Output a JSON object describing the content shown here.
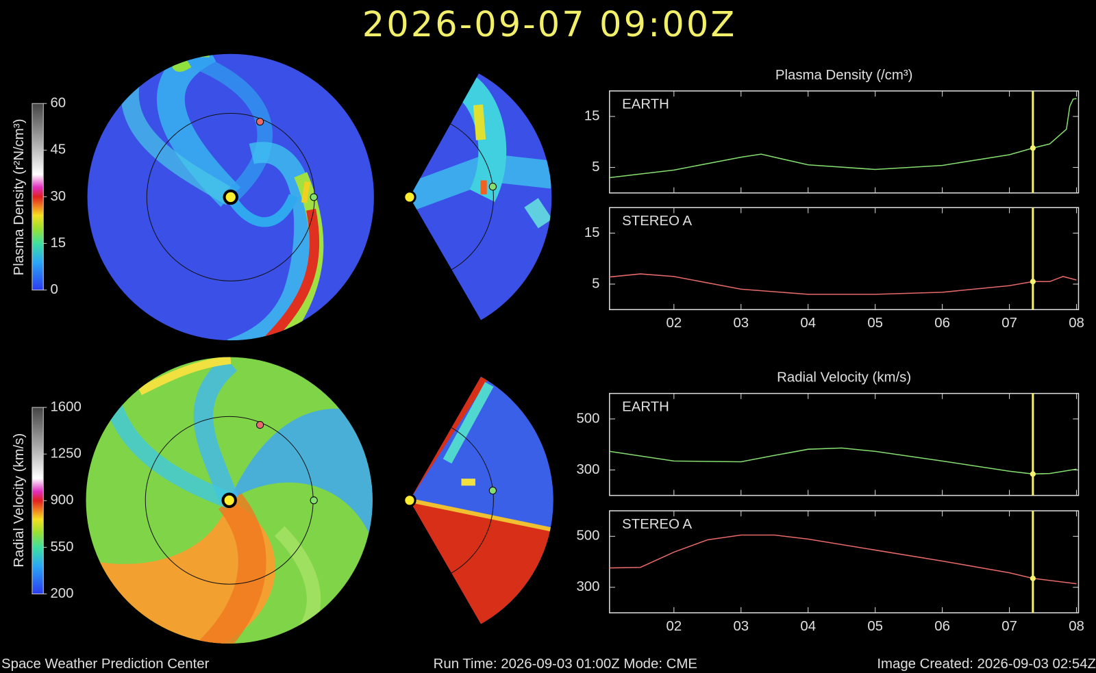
{
  "title": "2026-09-07  09:00Z",
  "footer": {
    "left": "Space Weather Prediction Center",
    "center": "Run Time: 2026-09-03 01:00Z  Mode: CME",
    "right": "Image Created: 2026-09-03 02:54Z"
  },
  "colorbars": [
    {
      "label": "Plasma Density (r²N/cm³)",
      "lim": [
        0,
        60
      ],
      "ticks": [
        0,
        15,
        30,
        45,
        60
      ]
    },
    {
      "label": "Radial Velocity (km/s)",
      "lim": [
        200,
        1600
      ],
      "ticks": [
        200,
        550,
        900,
        1250,
        1600
      ]
    }
  ],
  "current_x": 7.35,
  "chart_data": [
    {
      "type": "line",
      "title": "Plasma Density (/cm³)",
      "x": [
        1.04,
        2,
        3,
        3.3,
        4,
        5,
        6,
        7,
        7.35,
        7.6,
        7.85,
        7.9,
        7.95,
        8.0
      ],
      "series": [
        {
          "name": "EARTH",
          "color": "#86e070",
          "values": [
            3,
            4.5,
            7,
            7.6,
            5.5,
            4.6,
            5.4,
            7.5,
            8.8,
            9.6,
            12.5,
            17,
            18.4,
            18.5
          ]
        }
      ],
      "xlim": [
        1.04,
        8.03
      ],
      "ylim": [
        0,
        20
      ],
      "yticks": [
        5,
        15
      ]
    },
    {
      "type": "line",
      "x": [
        1.04,
        1.5,
        2,
        3,
        4,
        5,
        6,
        7,
        7.35,
        7.6,
        7.8,
        8.0
      ],
      "series": [
        {
          "name": "STEREO A",
          "color": "#e86a6a",
          "values": [
            6.4,
            7,
            6.5,
            4,
            3,
            3,
            3.4,
            4.7,
            5.5,
            5.5,
            6.5,
            5.8
          ]
        }
      ],
      "xlim": [
        1.04,
        8.03
      ],
      "ylim": [
        0,
        20
      ],
      "yticks": [
        5,
        15
      ],
      "xticks": [
        {
          "value": 2,
          "label": "02"
        },
        {
          "value": 3,
          "label": "03"
        },
        {
          "value": 4,
          "label": "04"
        },
        {
          "value": 5,
          "label": "05"
        },
        {
          "value": 6,
          "label": "06"
        },
        {
          "value": 7,
          "label": "07"
        },
        {
          "value": 8,
          "label": "08"
        }
      ]
    },
    {
      "type": "line",
      "title": "Radial Velocity (km/s)",
      "x": [
        1.04,
        2,
        3,
        3.5,
        4,
        4.5,
        5,
        6,
        7,
        7.35,
        7.6,
        8.0
      ],
      "series": [
        {
          "name": "EARTH",
          "color": "#86e070",
          "values": [
            373,
            335,
            332,
            357,
            381,
            386,
            373,
            335,
            295,
            284,
            286,
            303
          ]
        }
      ],
      "xlim": [
        1.04,
        8.03
      ],
      "ylim": [
        200,
        600
      ],
      "yticks": [
        300,
        500
      ]
    },
    {
      "type": "line",
      "x": [
        1.04,
        1.5,
        2,
        2.5,
        3,
        3.5,
        4,
        5,
        6,
        7,
        7.35,
        8.0
      ],
      "series": [
        {
          "name": "STEREO A",
          "color": "#e86a6a",
          "values": [
            376,
            378,
            438,
            486,
            505,
            505,
            489,
            446,
            403,
            357,
            335,
            314
          ]
        }
      ],
      "xlim": [
        1.04,
        8.03
      ],
      "ylim": [
        200,
        600
      ],
      "yticks": [
        300,
        500
      ],
      "xticks": [
        {
          "value": 2,
          "label": "02"
        },
        {
          "value": 3,
          "label": "03"
        },
        {
          "value": 4,
          "label": "04"
        },
        {
          "value": 5,
          "label": "05"
        },
        {
          "value": 6,
          "label": "06"
        },
        {
          "value": 7,
          "label": "07"
        },
        {
          "value": 8,
          "label": "08"
        }
      ]
    }
  ]
}
